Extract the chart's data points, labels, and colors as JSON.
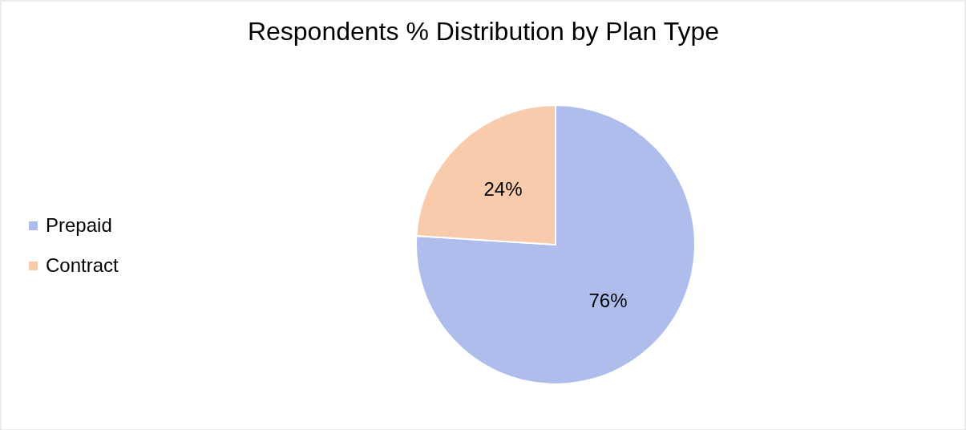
{
  "chart_data": {
    "type": "pie",
    "title": "Respondents % Distribution by Plan Type",
    "categories": [
      "Prepaid",
      "Contract"
    ],
    "values": [
      76,
      24
    ],
    "colors": [
      "#aebdec",
      "#f8cbad"
    ],
    "value_labels": [
      "76%",
      "24%"
    ],
    "legend": "left"
  }
}
